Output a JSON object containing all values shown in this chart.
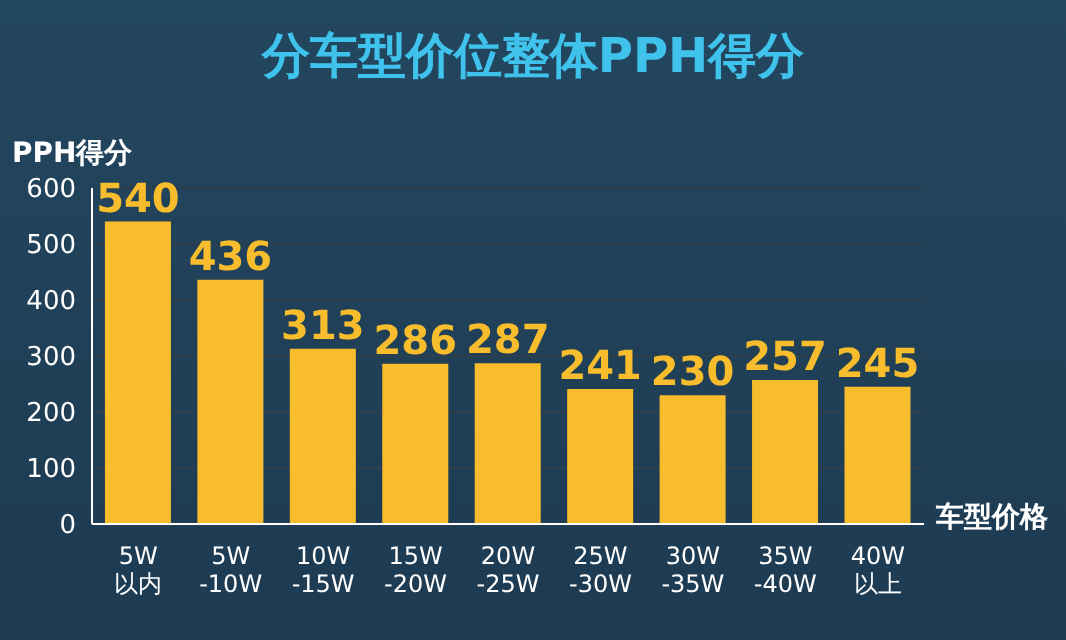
{
  "chart_data": {
    "type": "bar",
    "title": "分车型价位整体PPH得分",
    "ylabel": "PPH得分",
    "xlabel": "车型价格",
    "categories": [
      "5W\n以内",
      "5W\n-10W",
      "10W\n-15W",
      "15W\n-20W",
      "20W\n-25W",
      "25W\n-30W",
      "30W\n-35W",
      "35W\n-40W",
      "40W\n以上"
    ],
    "values": [
      540,
      436,
      313,
      286,
      287,
      241,
      230,
      257,
      245
    ],
    "color": "#f8bd2c",
    "ylim": [
      0,
      600
    ],
    "yticks": [
      0,
      100,
      200,
      300,
      400,
      500,
      600
    ],
    "grid": "y",
    "data_labels": true
  }
}
